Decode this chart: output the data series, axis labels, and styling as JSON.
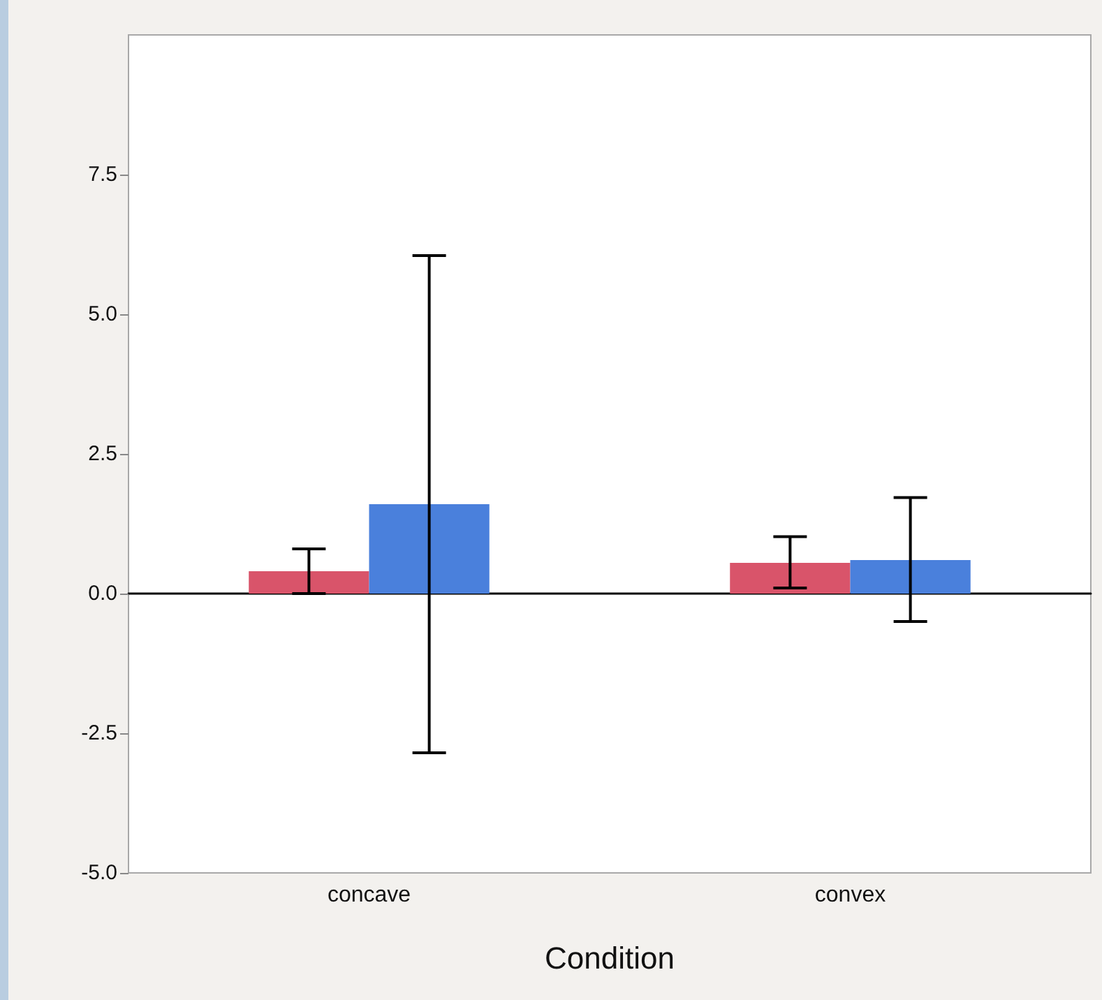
{
  "chart_data": {
    "type": "bar",
    "xlabel": "Condition",
    "categories": [
      "concave",
      "convex"
    ],
    "series": [
      {
        "color": "#d9546a",
        "values": [
          0.4,
          0.55
        ],
        "errors": [
          [
            0,
            0.8
          ],
          [
            0.1,
            1.02
          ]
        ]
      },
      {
        "color": "#4a80dc",
        "values": [
          1.6,
          0.6
        ],
        "errors": [
          [
            -2.85,
            6.05
          ],
          [
            -0.5,
            1.72
          ]
        ]
      }
    ],
    "ylim": [
      -5,
      10
    ],
    "yticks": [
      {
        "value": -5,
        "label": "-5.0"
      },
      {
        "value": -2.5,
        "label": "-2.5"
      },
      {
        "value": 0,
        "label": "0.0"
      },
      {
        "value": 2.5,
        "label": "2.5"
      },
      {
        "value": 5,
        "label": "5.0"
      },
      {
        "value": 7.5,
        "label": "7.5"
      }
    ]
  }
}
